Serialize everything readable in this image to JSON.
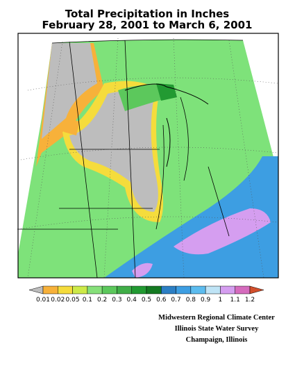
{
  "header": {
    "title": "Total Precipitation in Inches",
    "subtitle": "February 28, 2001 to March 6, 2001"
  },
  "legend": {
    "labels": [
      "0.01",
      "0.02",
      "0.05",
      "0.1",
      "0.2",
      "0.3",
      "0.4",
      "0.5",
      "0.6",
      "0.7",
      "0.8",
      "0.9",
      "1",
      "1.1",
      "1.2"
    ],
    "colors": [
      "#bdbdbd",
      "#f7b13a",
      "#f5dc3c",
      "#cdea48",
      "#86e07a",
      "#5cc85c",
      "#40ae48",
      "#229a32",
      "#147a22",
      "#2c7fc4",
      "#3d9ee2",
      "#5cbcef",
      "#bfe4f6",
      "#d59ef0",
      "#d56bbd",
      "#d24f2c"
    ]
  },
  "credits": [
    "Midwestern Regional Climate Center",
    "Illinois State Water Survey",
    "Champaign, Illinois"
  ]
}
